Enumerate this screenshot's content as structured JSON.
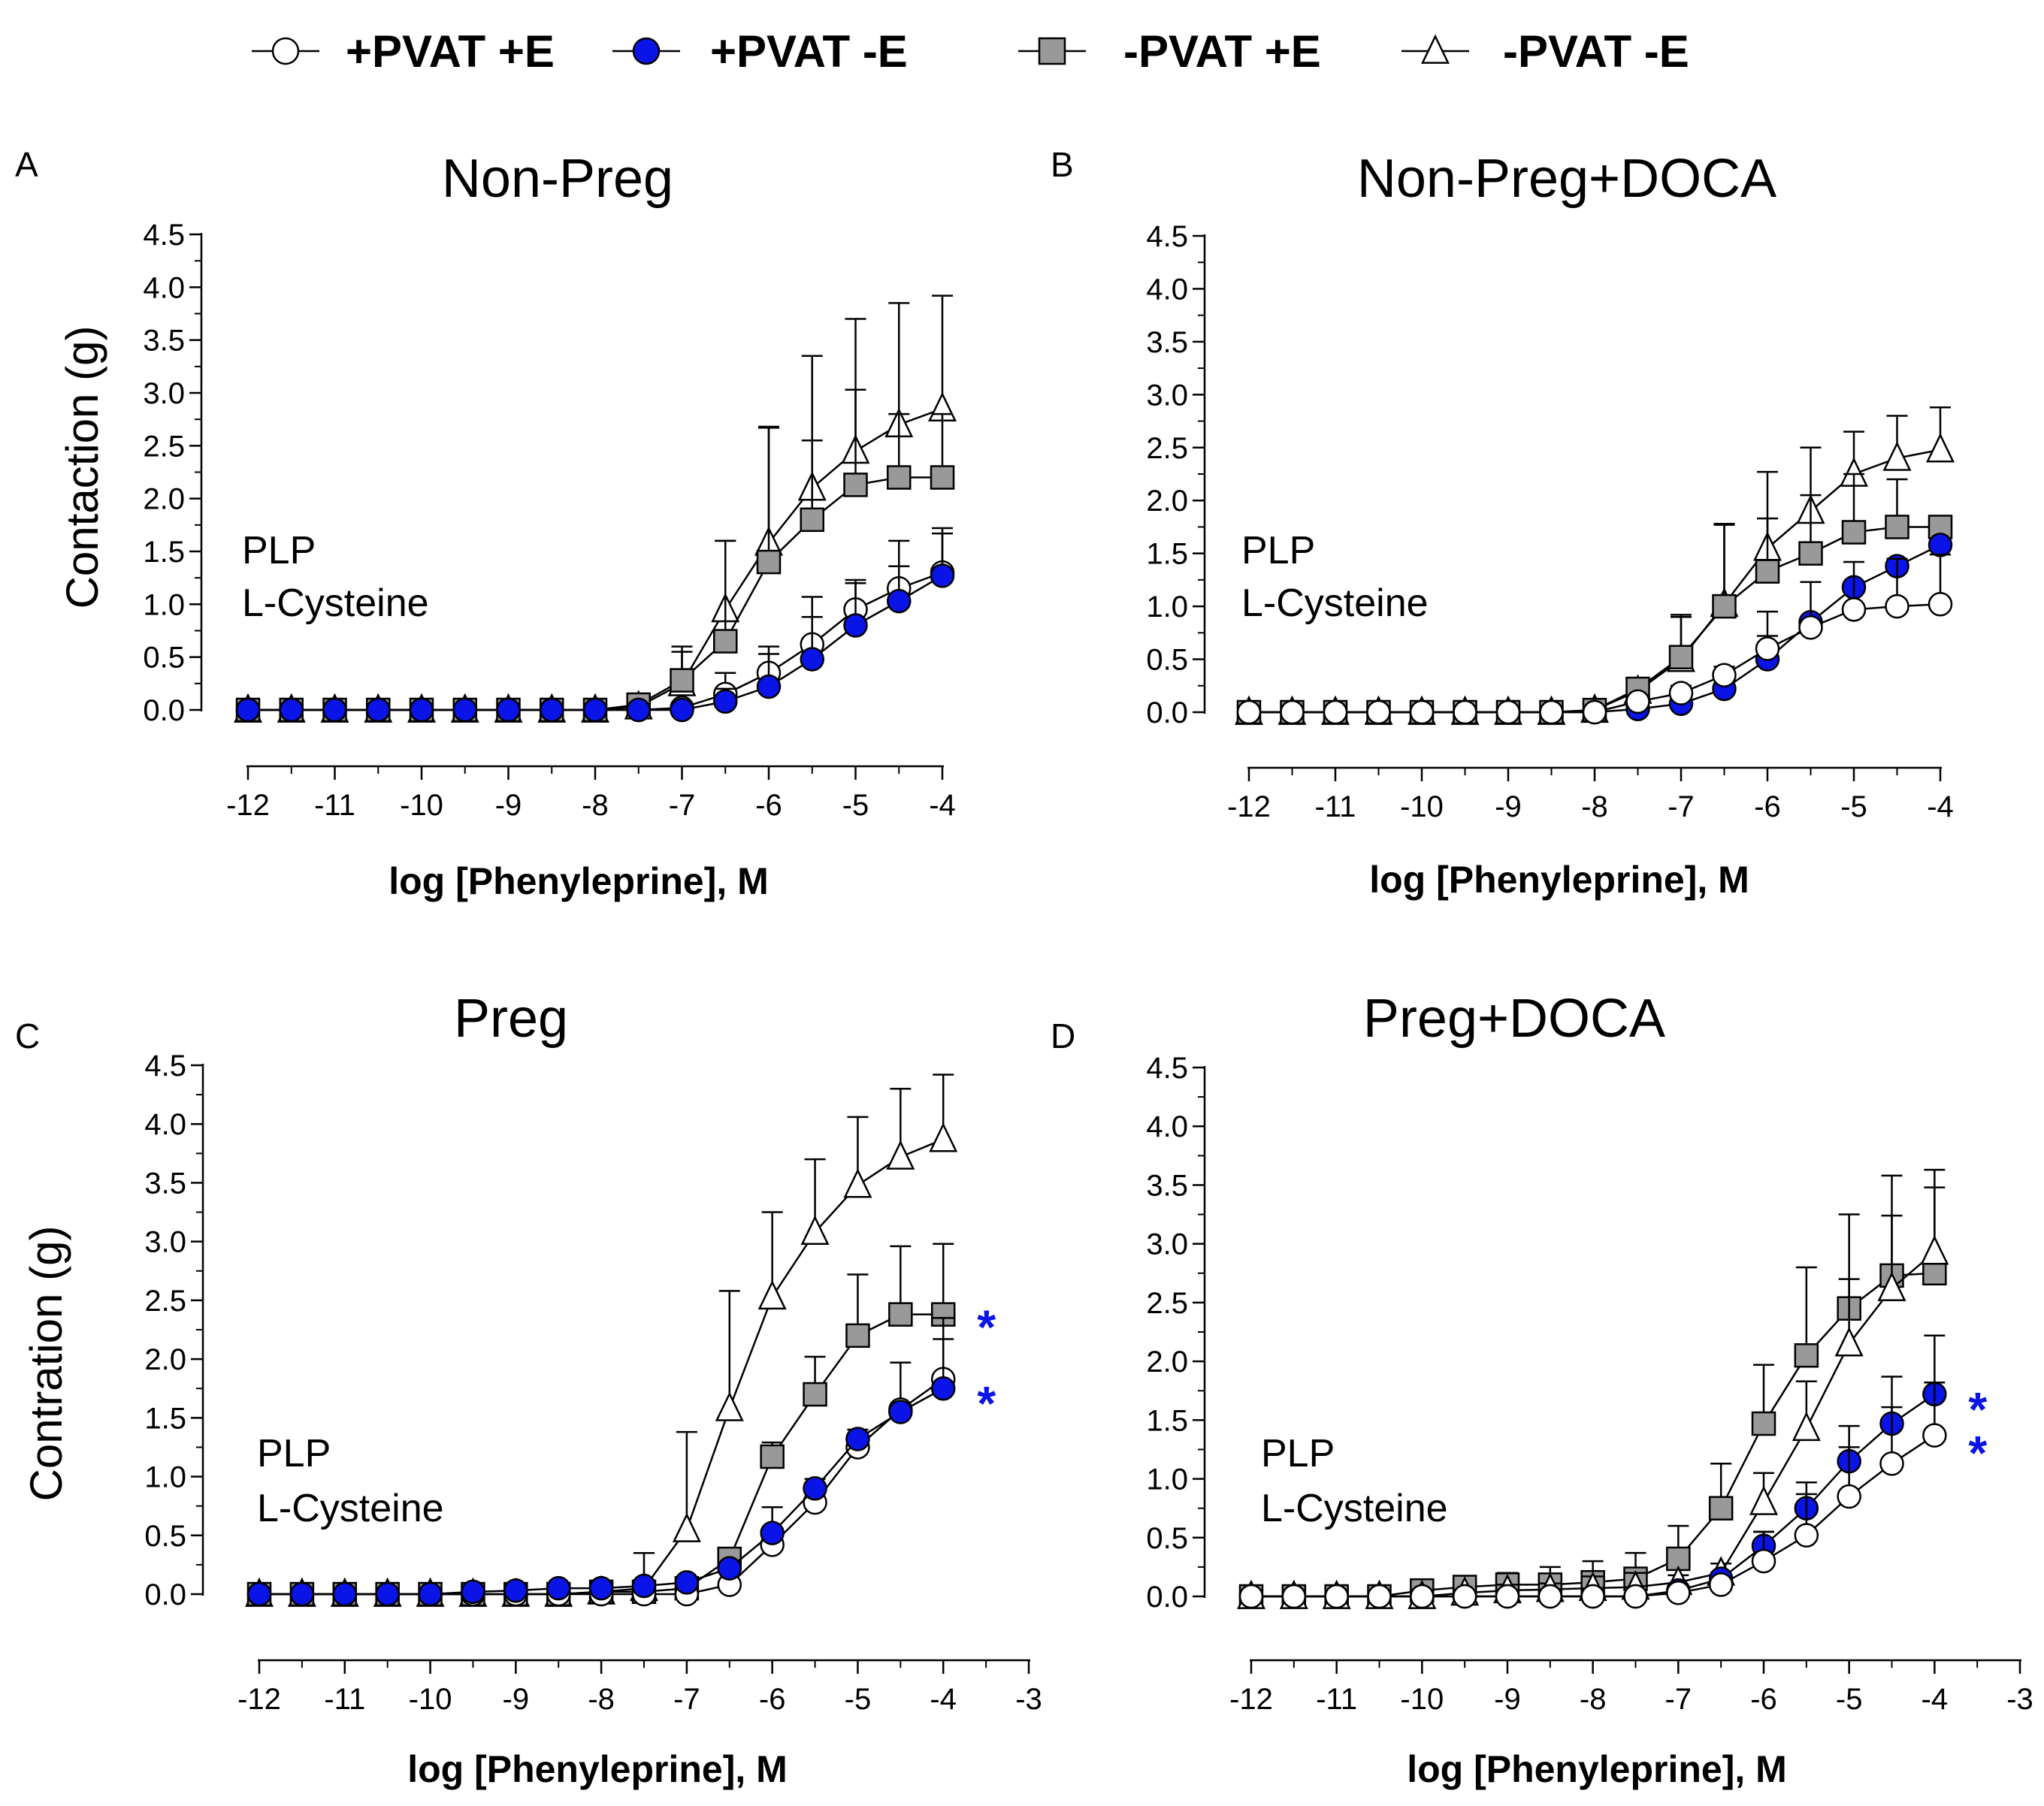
{
  "legend": [
    {
      "label": "+PVAT +E",
      "marker": "circle",
      "fill": "#ffffff"
    },
    {
      "label": "+PVAT -E",
      "marker": "circle",
      "fill": "#0a14e6"
    },
    {
      "label": "-PVAT +E",
      "marker": "square",
      "fill": "#999999"
    },
    {
      "label": "-PVAT -E",
      "marker": "triangle",
      "fill": "#ffffff"
    }
  ],
  "colors": {
    "blue": "#0a14e6",
    "gray": "#999999",
    "black": "#000000",
    "white": "#ffffff"
  },
  "chart_data": [
    {
      "type": "line",
      "letter": "A",
      "title": "Non-Preg",
      "xlabel": "log [Phenyleprine], M",
      "ylabel": "Contaction (g)",
      "xlim": [
        -12,
        -4
      ],
      "ylim": [
        0,
        4.5
      ],
      "xticks": [
        "-12",
        "-11",
        "-10",
        "-9",
        "-8",
        "-7",
        "-6",
        "-5",
        "-4"
      ],
      "yticks": [
        "0.0",
        "0.5",
        "1.0",
        "1.5",
        "2.0",
        "2.5",
        "3.0",
        "3.5",
        "4.0",
        "4.5"
      ],
      "annotation": [
        "PLP",
        "L-Cysteine"
      ],
      "stars": [],
      "x": [
        -12,
        -11.5,
        -11,
        -10.5,
        -10,
        -9.5,
        -9,
        -8.5,
        -8,
        -7.5,
        -7,
        -6.5,
        -6,
        -5.5,
        -5,
        -4.5,
        -4
      ],
      "series": [
        {
          "name": "-PVAT -E",
          "values": [
            0,
            0,
            0,
            0,
            0,
            0,
            0,
            0,
            0,
            0.03,
            0.25,
            0.95,
            1.58,
            2.1,
            2.45,
            2.7,
            2.85
          ],
          "errors": [
            0,
            0,
            0,
            0,
            0,
            0,
            0,
            0,
            0,
            0,
            0.3,
            0.65,
            1.1,
            1.25,
            1.25,
            1.15,
            1.07
          ]
        },
        {
          "name": "-PVAT +E",
          "values": [
            0,
            0,
            0,
            0,
            0,
            0,
            0,
            0,
            0,
            0.05,
            0.28,
            0.65,
            1.4,
            1.8,
            2.13,
            2.2,
            2.2
          ],
          "errors": [
            0,
            0,
            0,
            0,
            0,
            0,
            0,
            0,
            0,
            0,
            0.32,
            0.95,
            1.27,
            0.75,
            0.9,
            0.6,
            0.6
          ]
        },
        {
          "name": "+PVAT +E",
          "values": [
            0,
            0,
            0,
            0,
            0,
            0,
            0,
            0,
            0,
            0,
            0.02,
            0.15,
            0.35,
            0.62,
            0.95,
            1.15,
            1.3
          ],
          "errors": [
            0,
            0,
            0,
            0,
            0,
            0,
            0,
            0,
            0,
            0,
            0,
            0.2,
            0.18,
            0.45,
            0.25,
            0.45,
            0.42
          ]
        },
        {
          "name": "+PVAT -E",
          "values": [
            0,
            0,
            0,
            0,
            0,
            0,
            0,
            0,
            0,
            0,
            0,
            0.08,
            0.22,
            0.48,
            0.8,
            1.03,
            1.27
          ],
          "errors": [
            0,
            0,
            0,
            0,
            0,
            0,
            0,
            0,
            0,
            0,
            0,
            0.12,
            0.38,
            0.4,
            0.43,
            0.33,
            0.4
          ]
        }
      ]
    },
    {
      "type": "line",
      "letter": "B",
      "title": "Non-Preg+DOCA",
      "xlabel": "log [Phenyleprine], M",
      "ylabel": "",
      "xlim": [
        -12,
        -4
      ],
      "ylim": [
        0,
        4.5
      ],
      "xticks": [
        "-12",
        "-11",
        "-10",
        "-9",
        "-8",
        "-7",
        "-6",
        "-5",
        "-4"
      ],
      "yticks": [
        "0.0",
        "0.5",
        "1.0",
        "1.5",
        "2.0",
        "2.5",
        "3.0",
        "3.5",
        "4.0",
        "4.5"
      ],
      "annotation": [
        "PLP",
        "L-Cysteine"
      ],
      "stars": [],
      "x": [
        -12,
        -11.5,
        -11,
        -10.5,
        -10,
        -9.5,
        -9,
        -8.5,
        -8,
        -7.5,
        -7,
        -6.5,
        -6,
        -5.5,
        -5,
        -4.5,
        -4
      ],
      "series": [
        {
          "name": "-PVAT -E",
          "values": [
            0,
            0,
            0,
            0,
            0,
            0,
            0,
            0,
            0.02,
            0.2,
            0.5,
            1.02,
            1.55,
            1.9,
            2.25,
            2.4,
            2.48
          ],
          "errors": [
            0,
            0,
            0,
            0,
            0,
            0,
            0,
            0,
            0,
            0.08,
            0.42,
            0.75,
            0.72,
            0.6,
            0.4,
            0.4,
            0.4
          ]
        },
        {
          "name": "-PVAT +E",
          "values": [
            0,
            0,
            0,
            0,
            0,
            0,
            0,
            0,
            0.02,
            0.22,
            0.52,
            1.0,
            1.33,
            1.5,
            1.7,
            1.75,
            1.75
          ],
          "errors": [
            0,
            0,
            0,
            0,
            0,
            0,
            0,
            0,
            0,
            0.06,
            0.38,
            0.78,
            0.5,
            0.55,
            0.55,
            0.45,
            0.0
          ]
        },
        {
          "name": "+PVAT -E",
          "values": [
            0,
            0,
            0,
            0,
            0,
            0,
            0,
            0,
            0,
            0.03,
            0.08,
            0.22,
            0.5,
            0.85,
            1.18,
            1.38,
            1.58
          ],
          "errors": [
            0,
            0,
            0,
            0,
            0,
            0,
            0,
            0,
            0,
            0,
            0,
            0.1,
            0.22,
            0.0,
            0.0,
            0.0,
            0.0
          ]
        },
        {
          "name": "+PVAT +E",
          "values": [
            0,
            0,
            0,
            0,
            0,
            0,
            0,
            0,
            0,
            0.1,
            0.18,
            0.35,
            0.6,
            0.8,
            0.97,
            1.0,
            1.02
          ],
          "errors": [
            0,
            0,
            0,
            0,
            0,
            0,
            0,
            0,
            0,
            0,
            0.07,
            0.08,
            0.35,
            0.43,
            0.45,
            0.45,
            0.47
          ]
        }
      ]
    },
    {
      "type": "line",
      "letter": "C",
      "title": "Preg",
      "xlabel": "log [Phenyleprine], M",
      "ylabel": "Contration (g)",
      "xlim": [
        -12,
        -3
      ],
      "ylim": [
        0,
        4.5
      ],
      "xticks": [
        "-12",
        "-11",
        "-10",
        "-9",
        "-8",
        "-7",
        "-6",
        "-5",
        "-4",
        "-3"
      ],
      "yticks": [
        "0.0",
        "0.5",
        "1.0",
        "1.5",
        "2.0",
        "2.5",
        "3.0",
        "3.5",
        "4.0",
        "4.5"
      ],
      "annotation": [
        "PLP",
        "L-Cysteine"
      ],
      "stars": [
        {
          "text": "*",
          "y": 2.4
        },
        {
          "text": "*",
          "y": 1.75
        }
      ],
      "x": [
        -12,
        -11.5,
        -11,
        -10.5,
        -10,
        -9.5,
        -9,
        -8.5,
        -8,
        -7.5,
        -7,
        -6.5,
        -6,
        -5.5,
        -5,
        -4.5,
        -4
      ],
      "series": [
        {
          "name": "-PVAT -E",
          "values": [
            0,
            0,
            0,
            0,
            0,
            0,
            0,
            0,
            0.02,
            0.05,
            0.55,
            1.58,
            2.53,
            3.08,
            3.48,
            3.72,
            3.87
          ],
          "errors": [
            0,
            0,
            0,
            0,
            0,
            0,
            0,
            0,
            0,
            0.3,
            0.83,
            1.0,
            0.72,
            0.62,
            0.58,
            0.58,
            0.55
          ]
        },
        {
          "name": "-PVAT +E",
          "values": [
            0,
            0,
            0,
            0,
            0,
            0,
            0,
            0,
            0.02,
            0.02,
            0.05,
            0.3,
            1.17,
            1.7,
            2.2,
            2.38,
            2.38
          ],
          "errors": [
            0,
            0,
            0,
            0,
            0,
            0,
            0,
            0,
            0,
            0,
            0,
            0.05,
            0.12,
            0.32,
            0.52,
            0.58,
            0.6
          ]
        },
        {
          "name": "+PVAT +E",
          "values": [
            0,
            0,
            0,
            0,
            0,
            0,
            0,
            0,
            0,
            0,
            0,
            0.08,
            0.42,
            0.78,
            1.25,
            1.57,
            1.83
          ],
          "errors": [
            0,
            0,
            0,
            0,
            0,
            0,
            0,
            0,
            0,
            0,
            0,
            0,
            0.1,
            0.1,
            0.15,
            0.4,
            0.52
          ]
        },
        {
          "name": "+PVAT -E",
          "values": [
            0,
            0,
            0,
            0,
            0,
            0.02,
            0.03,
            0.05,
            0.05,
            0.07,
            0.1,
            0.22,
            0.52,
            0.9,
            1.32,
            1.55,
            1.75
          ],
          "errors": [
            0,
            0,
            0,
            0,
            0,
            0,
            0,
            0,
            0,
            0,
            0,
            0,
            0.22,
            0.08,
            0.0,
            0.0,
            0.42
          ]
        }
      ]
    },
    {
      "type": "line",
      "letter": "D",
      "title": "Preg+DOCA",
      "xlabel": "log [Phenyleprine], M",
      "ylabel": "",
      "xlim": [
        -12,
        -3
      ],
      "ylim": [
        0,
        4.5
      ],
      "xticks": [
        "-12",
        "-11",
        "-10",
        "-9",
        "-8",
        "-7",
        "-6",
        "-5",
        "-4",
        "-3"
      ],
      "yticks": [
        "0.0",
        "0.5",
        "1.0",
        "1.5",
        "2.0",
        "2.5",
        "3.0",
        "3.5",
        "4.0",
        "4.5"
      ],
      "annotation": [
        "PLP",
        "L-Cysteine"
      ],
      "stars": [
        {
          "text": "*",
          "y": 1.72
        },
        {
          "text": "*",
          "y": 1.35
        }
      ],
      "x": [
        -12,
        -11.5,
        -11,
        -10.5,
        -10,
        -9.5,
        -9,
        -8.5,
        -8,
        -7.5,
        -7,
        -6.5,
        -6,
        -5.5,
        -5,
        -4.5,
        -4
      ],
      "series": [
        {
          "name": "-PVAT +E",
          "values": [
            0,
            0,
            0,
            0,
            0.05,
            0.08,
            0.1,
            0.1,
            0.12,
            0.15,
            0.32,
            0.75,
            1.47,
            2.05,
            2.45,
            2.73,
            2.75
          ],
          "errors": [
            0,
            0,
            0,
            0,
            0,
            0,
            0.1,
            0.15,
            0.18,
            0.22,
            0.28,
            0.38,
            0.5,
            0.75,
            0.8,
            0.85,
            0.88
          ]
        },
        {
          "name": "-PVAT -E",
          "values": [
            0,
            0,
            0,
            0,
            0,
            0.03,
            0.05,
            0.06,
            0.07,
            0.08,
            0.12,
            0.2,
            0.8,
            1.43,
            2.15,
            2.62,
            2.93
          ],
          "errors": [
            0,
            0,
            0,
            0,
            0,
            0,
            0.05,
            0.05,
            0.1,
            0.12,
            0.06,
            0.08,
            0.25,
            0.4,
            0.55,
            0.62,
            0.55
          ]
        },
        {
          "name": "+PVAT -E",
          "values": [
            0,
            0,
            0,
            0,
            0,
            0,
            0,
            0,
            0,
            0,
            0.05,
            0.15,
            0.43,
            0.75,
            1.15,
            1.47,
            1.72
          ],
          "errors": [
            0,
            0,
            0,
            0,
            0,
            0,
            0,
            0,
            0,
            0,
            0,
            0.05,
            0.12,
            0.22,
            0.3,
            0.4,
            0.5
          ]
        },
        {
          "name": "+PVAT +E",
          "values": [
            0,
            0,
            0,
            0,
            0,
            0,
            0,
            0,
            0,
            0,
            0.03,
            0.1,
            0.3,
            0.52,
            0.85,
            1.13,
            1.37
          ],
          "errors": [
            0,
            0,
            0,
            0,
            0,
            0,
            0,
            0,
            0,
            0,
            0,
            0,
            0.25,
            0.35,
            0.42,
            0.48,
            0.45
          ]
        }
      ]
    }
  ]
}
